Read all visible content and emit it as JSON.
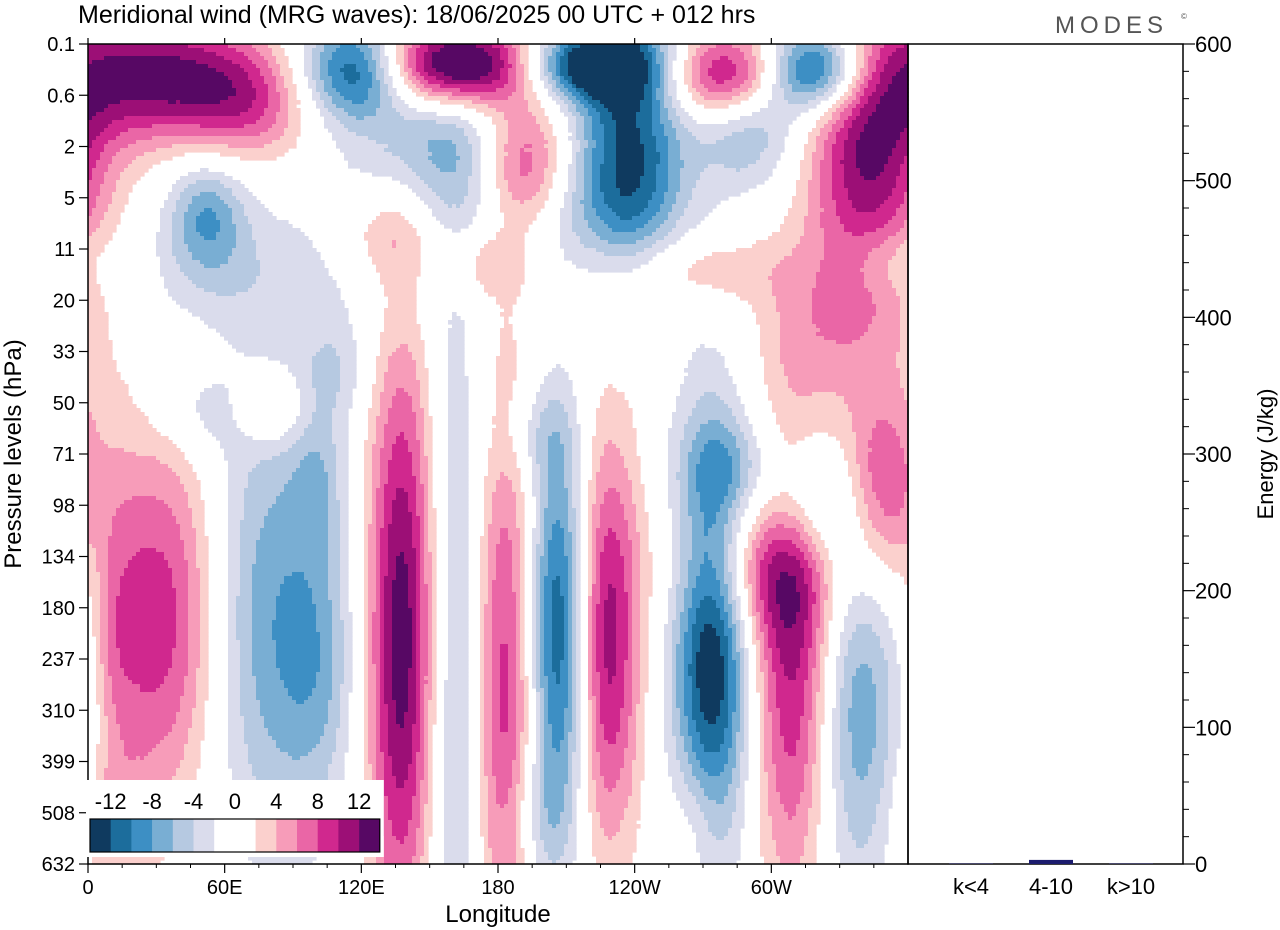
{
  "title": "Meridional wind (MRG waves):  18/06/2025  00 UTC  + 012 hrs",
  "brand": "MODES",
  "brand_mark": "©",
  "chart_data": [
    {
      "type": "heatmap",
      "name": "contour",
      "xlabel": "Longitude",
      "ylabel": "Pressure levels (hPa)",
      "x_ticks": [
        "0",
        "60E",
        "120E",
        "180",
        "120W",
        "60W"
      ],
      "x_tick_positions": [
        0,
        60,
        120,
        180,
        240,
        300
      ],
      "xlim": [
        0,
        360
      ],
      "y_ticks": [
        "0.1",
        "0.6",
        "2",
        "5",
        "11",
        "20",
        "33",
        "50",
        "71",
        "98",
        "134",
        "180",
        "237",
        "310",
        "399",
        "508",
        "632"
      ],
      "colorbar": {
        "labels": [
          "-12",
          "-8",
          "-4",
          "0",
          "4",
          "8",
          "12"
        ],
        "label_bins": [
          1,
          3,
          5,
          7,
          9,
          11,
          13
        ],
        "colors": [
          "#0f3a5f",
          "#1c6d9c",
          "#3d8fc4",
          "#79aed3",
          "#b6c9e1",
          "#dadcec",
          "#ffffff",
          "#ffffff",
          "#fbd0cd",
          "#f79cb9",
          "#ea66a6",
          "#d0288e",
          "#9c0f76",
          "#570864"
        ]
      },
      "blobs": [
        {
          "lon": 33,
          "lev": 11.2,
          "ax": 20,
          "ay": 2.6,
          "amp": 10,
          "sign": 1
        },
        {
          "lon": 8,
          "lev": 11.6,
          "ax": 8,
          "ay": 1.4,
          "amp": 4,
          "sign": 1
        },
        {
          "lon": 80,
          "lev": 11.2,
          "ax": 23,
          "ay": 3.1,
          "amp": 8,
          "sign": -1
        },
        {
          "lon": 101,
          "lev": 12.2,
          "ax": 11,
          "ay": 1.7,
          "amp": 3,
          "sign": -1
        },
        {
          "lon": 138,
          "lev": 11.6,
          "ax": 11,
          "ay": 4.0,
          "amp": 14,
          "sign": 1
        },
        {
          "lon": 163,
          "lev": 12.4,
          "ax": 11,
          "ay": 5.2,
          "amp": 7,
          "sign": -1
        },
        {
          "lon": 183,
          "lev": 12.6,
          "ax": 12,
          "ay": 4.2,
          "amp": 11,
          "sign": 1
        },
        {
          "lon": 207,
          "lev": 11.5,
          "ax": 11,
          "ay": 2.8,
          "amp": 15,
          "sign": -1
        },
        {
          "lon": 226,
          "lev": 11.6,
          "ax": 11,
          "ay": 2.8,
          "amp": 13,
          "sign": 1
        },
        {
          "lon": 274,
          "lev": 11.5,
          "ax": 12,
          "ay": 2.9,
          "amp": 15,
          "sign": -1
        },
        {
          "lon": 310,
          "lev": 12.1,
          "ax": 13,
          "ay": 3.1,
          "amp": 11,
          "sign": 1
        },
        {
          "lon": 338,
          "lev": 13.0,
          "ax": 15,
          "ay": 2.6,
          "amp": 8,
          "sign": -1
        },
        {
          "lon": 292,
          "lev": 10.2,
          "ax": 24,
          "ay": 1.0,
          "amp": 7,
          "sign": 1
        },
        {
          "lon": 318,
          "lev": 9.0,
          "ax": 16,
          "ay": 0.9,
          "amp": 7,
          "sign": -1
        },
        {
          "lon": 348,
          "lev": 8.6,
          "ax": 14,
          "ay": 1.3,
          "amp": 9,
          "sign": 1
        },
        {
          "lon": 28,
          "lev": 0.6,
          "ax": 30,
          "ay": 0.9,
          "amp": 12,
          "sign": 1
        },
        {
          "lon": 70,
          "lev": 1.1,
          "ax": 22,
          "ay": 0.8,
          "amp": 7,
          "sign": 1
        },
        {
          "lon": 117,
          "lev": 0.5,
          "ax": 17,
          "ay": 0.7,
          "amp": 14,
          "sign": -1
        },
        {
          "lon": 163,
          "lev": 0.4,
          "ax": 26,
          "ay": 0.6,
          "amp": 20,
          "sign": 1
        },
        {
          "lon": 218,
          "lev": 0.4,
          "ax": 22,
          "ay": 0.5,
          "amp": 15,
          "sign": -1
        },
        {
          "lon": 280,
          "lev": 0.6,
          "ax": 19,
          "ay": 0.6,
          "amp": 12,
          "sign": 1
        },
        {
          "lon": 320,
          "lev": 0.5,
          "ax": 16,
          "ay": 0.6,
          "amp": 15,
          "sign": -1
        },
        {
          "lon": 343,
          "lev": 2.2,
          "ax": 19,
          "ay": 1.9,
          "amp": 12,
          "sign": 1
        },
        {
          "lon": 238,
          "lev": 1.9,
          "ax": 17,
          "ay": 1.7,
          "amp": 12,
          "sign": -1
        },
        {
          "lon": 192,
          "lev": 2.4,
          "ax": 14,
          "ay": 0.9,
          "amp": 9,
          "sign": 1
        },
        {
          "lon": 157,
          "lev": 1.6,
          "ax": 22,
          "ay": 1.3,
          "amp": 6,
          "sign": -1
        },
        {
          "lon": 290,
          "lev": 1.7,
          "ax": 16,
          "ay": 0.8,
          "amp": 6,
          "sign": -1
        },
        {
          "lon": 130,
          "lev": 3.6,
          "ax": 25,
          "ay": 1.3,
          "amp": 3,
          "sign": -1
        },
        {
          "lon": 52,
          "lev": 3.3,
          "ax": 12,
          "ay": 0.8,
          "amp": 7,
          "sign": -1
        },
        {
          "lon": 133,
          "lev": 3.7,
          "ax": 17,
          "ay": 0.7,
          "amp": 6,
          "sign": 1
        },
        {
          "lon": 173,
          "lev": 4.3,
          "ax": 12,
          "ay": 0.5,
          "amp": 4,
          "sign": 1
        },
        {
          "lon": 215,
          "lev": 3.2,
          "ax": 30,
          "ay": 0.8,
          "amp": 3,
          "sign": -1
        },
        {
          "lon": 265,
          "lev": 4.4,
          "ax": 27,
          "ay": 0.5,
          "amp": 4,
          "sign": 1
        },
        {
          "lon": 350,
          "lev": 4.2,
          "ax": 14,
          "ay": 0.5,
          "amp": 3,
          "sign": -1
        },
        {
          "lon": 60,
          "lev": 4.5,
          "ax": 30,
          "ay": 0.9,
          "amp": 3,
          "sign": -1
        },
        {
          "lon": 326,
          "lev": 5.5,
          "ax": 24,
          "ay": 1.1,
          "amp": 4,
          "sign": 1
        },
        {
          "lon": 108,
          "lev": 6.4,
          "ax": 11,
          "ay": 0.7,
          "amp": 3,
          "sign": -1
        },
        {
          "lon": 80,
          "lev": 7.1,
          "ax": 11,
          "ay": 0.5,
          "amp": 5,
          "sign": 1
        },
        {
          "lon": 48,
          "lev": 7.2,
          "ax": 15,
          "ay": 0.6,
          "amp": 3,
          "sign": -1
        },
        {
          "lon": 196,
          "lev": 7.6,
          "ax": 12,
          "ay": 0.7,
          "amp": 3,
          "sign": -1
        },
        {
          "lon": 283,
          "lev": 8.2,
          "ax": 14,
          "ay": 0.6,
          "amp": 3,
          "sign": -1
        },
        {
          "lon": 101,
          "lev": 8.4,
          "ax": 8,
          "ay": 1.0,
          "amp": 3,
          "sign": -1
        },
        {
          "lon": 3,
          "lev": 11.2,
          "ax": 6,
          "ay": 2.2,
          "amp": 3,
          "sign": -1
        },
        {
          "lon": 196,
          "lev": 15.2,
          "ax": 10,
          "ay": 1.0,
          "amp": 4,
          "sign": -1
        },
        {
          "lon": 267,
          "lev": 15.2,
          "ax": 8,
          "ay": 0.9,
          "amp": 3,
          "sign": 1
        },
        {
          "lon": 8,
          "lev": 15.2,
          "ax": 12,
          "ay": 1.2,
          "amp": 4,
          "sign": 1
        }
      ]
    },
    {
      "type": "bar",
      "name": "energy",
      "categories": [
        "k<4",
        "4-10",
        "k>10"
      ],
      "values": [
        0.3,
        3,
        0.3
      ],
      "ylabel": "Energy (J/kg)",
      "ylim": [
        0,
        600
      ],
      "y_ticks": [
        0,
        100,
        200,
        300,
        400,
        500,
        600
      ],
      "bar_color": "#1c1c6e"
    }
  ]
}
